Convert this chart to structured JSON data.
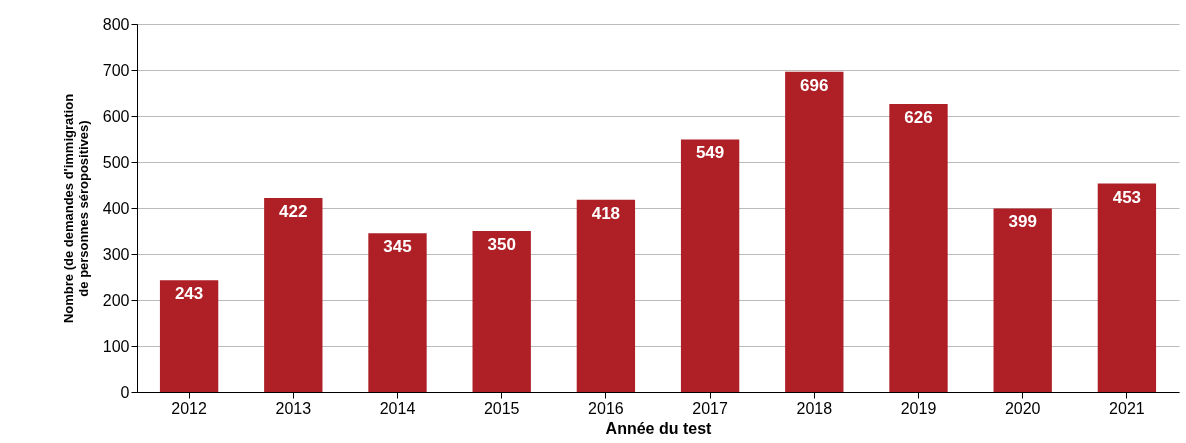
{
  "chart_data": {
    "type": "bar",
    "xlabel": "Année du test",
    "ylabel": "Nombre (de demandes d'immigration de personnes séropositives)",
    "categories": [
      "2012",
      "2013",
      "2014",
      "2015",
      "2016",
      "2017",
      "2018",
      "2019",
      "2020",
      "2021"
    ],
    "values": [
      243,
      422,
      345,
      350,
      418,
      549,
      696,
      626,
      399,
      453
    ],
    "color": "#ae1f26",
    "ylim": [
      0,
      800
    ],
    "yticks": [
      0,
      100,
      200,
      300,
      400,
      500,
      600,
      700,
      800
    ],
    "grid": "y",
    "data_labels": true
  }
}
